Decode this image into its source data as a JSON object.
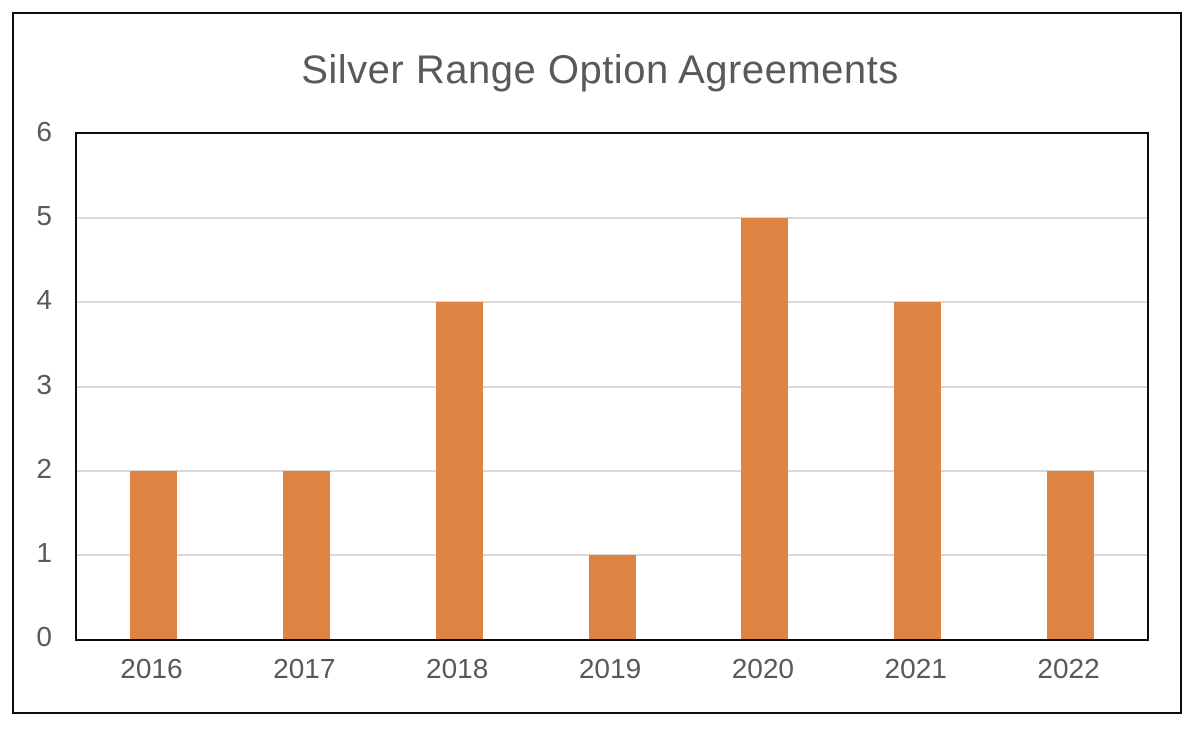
{
  "chart_data": {
    "type": "bar",
    "title": "Silver Range Option Agreements",
    "categories": [
      "2016",
      "2017",
      "2018",
      "2019",
      "2020",
      "2021",
      "2022"
    ],
    "values": [
      2,
      2,
      4,
      1,
      5,
      4,
      2
    ],
    "xlabel": "",
    "ylabel": "",
    "ylim": [
      0,
      6
    ],
    "yticks": [
      0,
      1,
      2,
      3,
      4,
      5,
      6
    ],
    "grid": "horizontal",
    "legend_position": "none",
    "colors": {
      "bar": "#df8343",
      "gridline": "#d9d9d9",
      "axis_text": "#595959",
      "title_text": "#595959",
      "border": "#0d0d0d"
    }
  }
}
